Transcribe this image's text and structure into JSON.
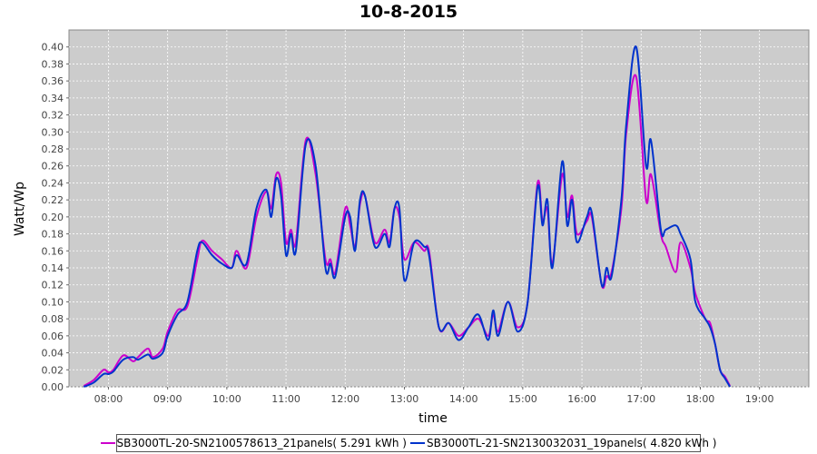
{
  "chart_data": {
    "type": "line",
    "title": "10-8-2015",
    "xlabel": "time",
    "ylabel": "Watt/Wp",
    "xlim": [
      "07:20",
      "19:50"
    ],
    "ylim": [
      0,
      0.42
    ],
    "x_ticks": [
      "08:00",
      "09:00",
      "10:00",
      "11:00",
      "12:00",
      "13:00",
      "14:00",
      "15:00",
      "16:00",
      "17:00",
      "18:00",
      "19:00"
    ],
    "y_ticks": [
      "0.00",
      "0.02",
      "0.04",
      "0.06",
      "0.08",
      "0.10",
      "0.12",
      "0.14",
      "0.16",
      "0.18",
      "0.20",
      "0.22",
      "0.24",
      "0.26",
      "0.28",
      "0.30",
      "0.32",
      "0.34",
      "0.36",
      "0.38",
      "0.40"
    ],
    "grid": true,
    "background": "#cccccc",
    "legend_position": "bottom",
    "series": [
      {
        "name": "SB3000TL-20-SN2100578613_21panels( 5.291 kWh )",
        "color": "#cc00cc",
        "points": [
          [
            "07:35",
            0.001
          ],
          [
            "07:45",
            0.008
          ],
          [
            "07:55",
            0.02
          ],
          [
            "08:00",
            0.017
          ],
          [
            "08:05",
            0.02
          ],
          [
            "08:15",
            0.037
          ],
          [
            "08:25",
            0.03
          ],
          [
            "08:30",
            0.035
          ],
          [
            "08:40",
            0.045
          ],
          [
            "08:45",
            0.035
          ],
          [
            "08:55",
            0.045
          ],
          [
            "09:00",
            0.065
          ],
          [
            "09:10",
            0.09
          ],
          [
            "09:20",
            0.095
          ],
          [
            "09:30",
            0.15
          ],
          [
            "09:35",
            0.172
          ],
          [
            "09:45",
            0.16
          ],
          [
            "09:55",
            0.15
          ],
          [
            "10:05",
            0.14
          ],
          [
            "10:10",
            0.16
          ],
          [
            "10:20",
            0.14
          ],
          [
            "10:30",
            0.2
          ],
          [
            "10:40",
            0.23
          ],
          [
            "10:45",
            0.21
          ],
          [
            "10:50",
            0.25
          ],
          [
            "10:55",
            0.24
          ],
          [
            "11:00",
            0.17
          ],
          [
            "11:05",
            0.185
          ],
          [
            "11:10",
            0.17
          ],
          [
            "11:20",
            0.29
          ],
          [
            "11:30",
            0.25
          ],
          [
            "11:40",
            0.15
          ],
          [
            "11:45",
            0.15
          ],
          [
            "11:50",
            0.135
          ],
          [
            "12:00",
            0.21
          ],
          [
            "12:05",
            0.19
          ],
          [
            "12:10",
            0.165
          ],
          [
            "12:15",
            0.215
          ],
          [
            "12:20",
            0.225
          ],
          [
            "12:30",
            0.17
          ],
          [
            "12:40",
            0.185
          ],
          [
            "12:45",
            0.17
          ],
          [
            "12:50",
            0.21
          ],
          [
            "12:55",
            0.2
          ],
          [
            "13:00",
            0.15
          ],
          [
            "13:10",
            0.17
          ],
          [
            "13:20",
            0.16
          ],
          [
            "13:25",
            0.16
          ],
          [
            "13:35",
            0.07
          ],
          [
            "13:45",
            0.075
          ],
          [
            "13:55",
            0.06
          ],
          [
            "14:05",
            0.07
          ],
          [
            "14:15",
            0.08
          ],
          [
            "14:25",
            0.06
          ],
          [
            "14:30",
            0.085
          ],
          [
            "14:35",
            0.065
          ],
          [
            "14:45",
            0.1
          ],
          [
            "14:55",
            0.07
          ],
          [
            "15:05",
            0.1
          ],
          [
            "15:15",
            0.24
          ],
          [
            "15:20",
            0.195
          ],
          [
            "15:25",
            0.21
          ],
          [
            "15:30",
            0.145
          ],
          [
            "15:40",
            0.25
          ],
          [
            "15:45",
            0.2
          ],
          [
            "15:50",
            0.225
          ],
          [
            "15:55",
            0.18
          ],
          [
            "16:05",
            0.195
          ],
          [
            "16:10",
            0.2
          ],
          [
            "16:20",
            0.12
          ],
          [
            "16:25",
            0.13
          ],
          [
            "16:30",
            0.135
          ],
          [
            "16:40",
            0.21
          ],
          [
            "16:45",
            0.3
          ],
          [
            "16:55",
            0.365
          ],
          [
            "17:05",
            0.22
          ],
          [
            "17:10",
            0.25
          ],
          [
            "17:20",
            0.18
          ],
          [
            "17:25",
            0.165
          ],
          [
            "17:35",
            0.135
          ],
          [
            "17:40",
            0.17
          ],
          [
            "17:50",
            0.14
          ],
          [
            "17:55",
            0.11
          ],
          [
            "18:05",
            0.08
          ],
          [
            "18:10",
            0.075
          ],
          [
            "18:15",
            0.05
          ],
          [
            "18:20",
            0.02
          ],
          [
            "18:25",
            0.012
          ],
          [
            "18:30",
            0.001
          ]
        ]
      },
      {
        "name": "SB3000TL-21-SN2130032031_19panels( 4.820 kWh )",
        "color": "#0033cc",
        "points": [
          [
            "07:35",
            0.0
          ],
          [
            "07:45",
            0.005
          ],
          [
            "07:55",
            0.015
          ],
          [
            "08:00",
            0.015
          ],
          [
            "08:05",
            0.018
          ],
          [
            "08:15",
            0.032
          ],
          [
            "08:25",
            0.035
          ],
          [
            "08:30",
            0.032
          ],
          [
            "08:40",
            0.038
          ],
          [
            "08:45",
            0.033
          ],
          [
            "08:55",
            0.04
          ],
          [
            "09:00",
            0.06
          ],
          [
            "09:10",
            0.085
          ],
          [
            "09:20",
            0.1
          ],
          [
            "09:30",
            0.16
          ],
          [
            "09:35",
            0.17
          ],
          [
            "09:45",
            0.155
          ],
          [
            "09:55",
            0.145
          ],
          [
            "10:05",
            0.14
          ],
          [
            "10:10",
            0.155
          ],
          [
            "10:20",
            0.145
          ],
          [
            "10:30",
            0.21
          ],
          [
            "10:40",
            0.232
          ],
          [
            "10:45",
            0.2
          ],
          [
            "10:50",
            0.245
          ],
          [
            "10:55",
            0.225
          ],
          [
            "11:00",
            0.155
          ],
          [
            "11:05",
            0.18
          ],
          [
            "11:10",
            0.16
          ],
          [
            "11:20",
            0.285
          ],
          [
            "11:30",
            0.26
          ],
          [
            "11:40",
            0.14
          ],
          [
            "11:45",
            0.145
          ],
          [
            "11:50",
            0.13
          ],
          [
            "12:00",
            0.2
          ],
          [
            "12:05",
            0.2
          ],
          [
            "12:10",
            0.16
          ],
          [
            "12:15",
            0.22
          ],
          [
            "12:20",
            0.225
          ],
          [
            "12:30",
            0.165
          ],
          [
            "12:40",
            0.18
          ],
          [
            "12:45",
            0.165
          ],
          [
            "12:50",
            0.21
          ],
          [
            "12:55",
            0.21
          ],
          [
            "13:00",
            0.125
          ],
          [
            "13:10",
            0.17
          ],
          [
            "13:20",
            0.165
          ],
          [
            "13:25",
            0.155
          ],
          [
            "13:35",
            0.07
          ],
          [
            "13:45",
            0.075
          ],
          [
            "13:55",
            0.055
          ],
          [
            "14:05",
            0.07
          ],
          [
            "14:15",
            0.085
          ],
          [
            "14:25",
            0.055
          ],
          [
            "14:30",
            0.09
          ],
          [
            "14:35",
            0.06
          ],
          [
            "14:45",
            0.1
          ],
          [
            "14:55",
            0.065
          ],
          [
            "15:05",
            0.1
          ],
          [
            "15:15",
            0.235
          ],
          [
            "15:20",
            0.19
          ],
          [
            "15:25",
            0.22
          ],
          [
            "15:30",
            0.14
          ],
          [
            "15:40",
            0.265
          ],
          [
            "15:45",
            0.19
          ],
          [
            "15:50",
            0.22
          ],
          [
            "15:55",
            0.17
          ],
          [
            "16:05",
            0.2
          ],
          [
            "16:10",
            0.205
          ],
          [
            "16:20",
            0.12
          ],
          [
            "16:25",
            0.14
          ],
          [
            "16:30",
            0.13
          ],
          [
            "16:40",
            0.22
          ],
          [
            "16:45",
            0.31
          ],
          [
            "16:55",
            0.4
          ],
          [
            "17:05",
            0.26
          ],
          [
            "17:10",
            0.29
          ],
          [
            "17:20",
            0.185
          ],
          [
            "17:25",
            0.185
          ],
          [
            "17:35",
            0.19
          ],
          [
            "17:40",
            0.18
          ],
          [
            "17:50",
            0.15
          ],
          [
            "17:55",
            0.1
          ],
          [
            "18:05",
            0.08
          ],
          [
            "18:10",
            0.07
          ],
          [
            "18:15",
            0.05
          ],
          [
            "18:20",
            0.02
          ],
          [
            "18:25",
            0.01
          ],
          [
            "18:30",
            0.0
          ]
        ]
      }
    ]
  },
  "legend": {
    "item1": "SB3000TL-20-SN2100578613_21panels( 5.291 kWh )",
    "item2": "SB3000TL-21-SN2130032031_19panels( 4.820 kWh )"
  }
}
